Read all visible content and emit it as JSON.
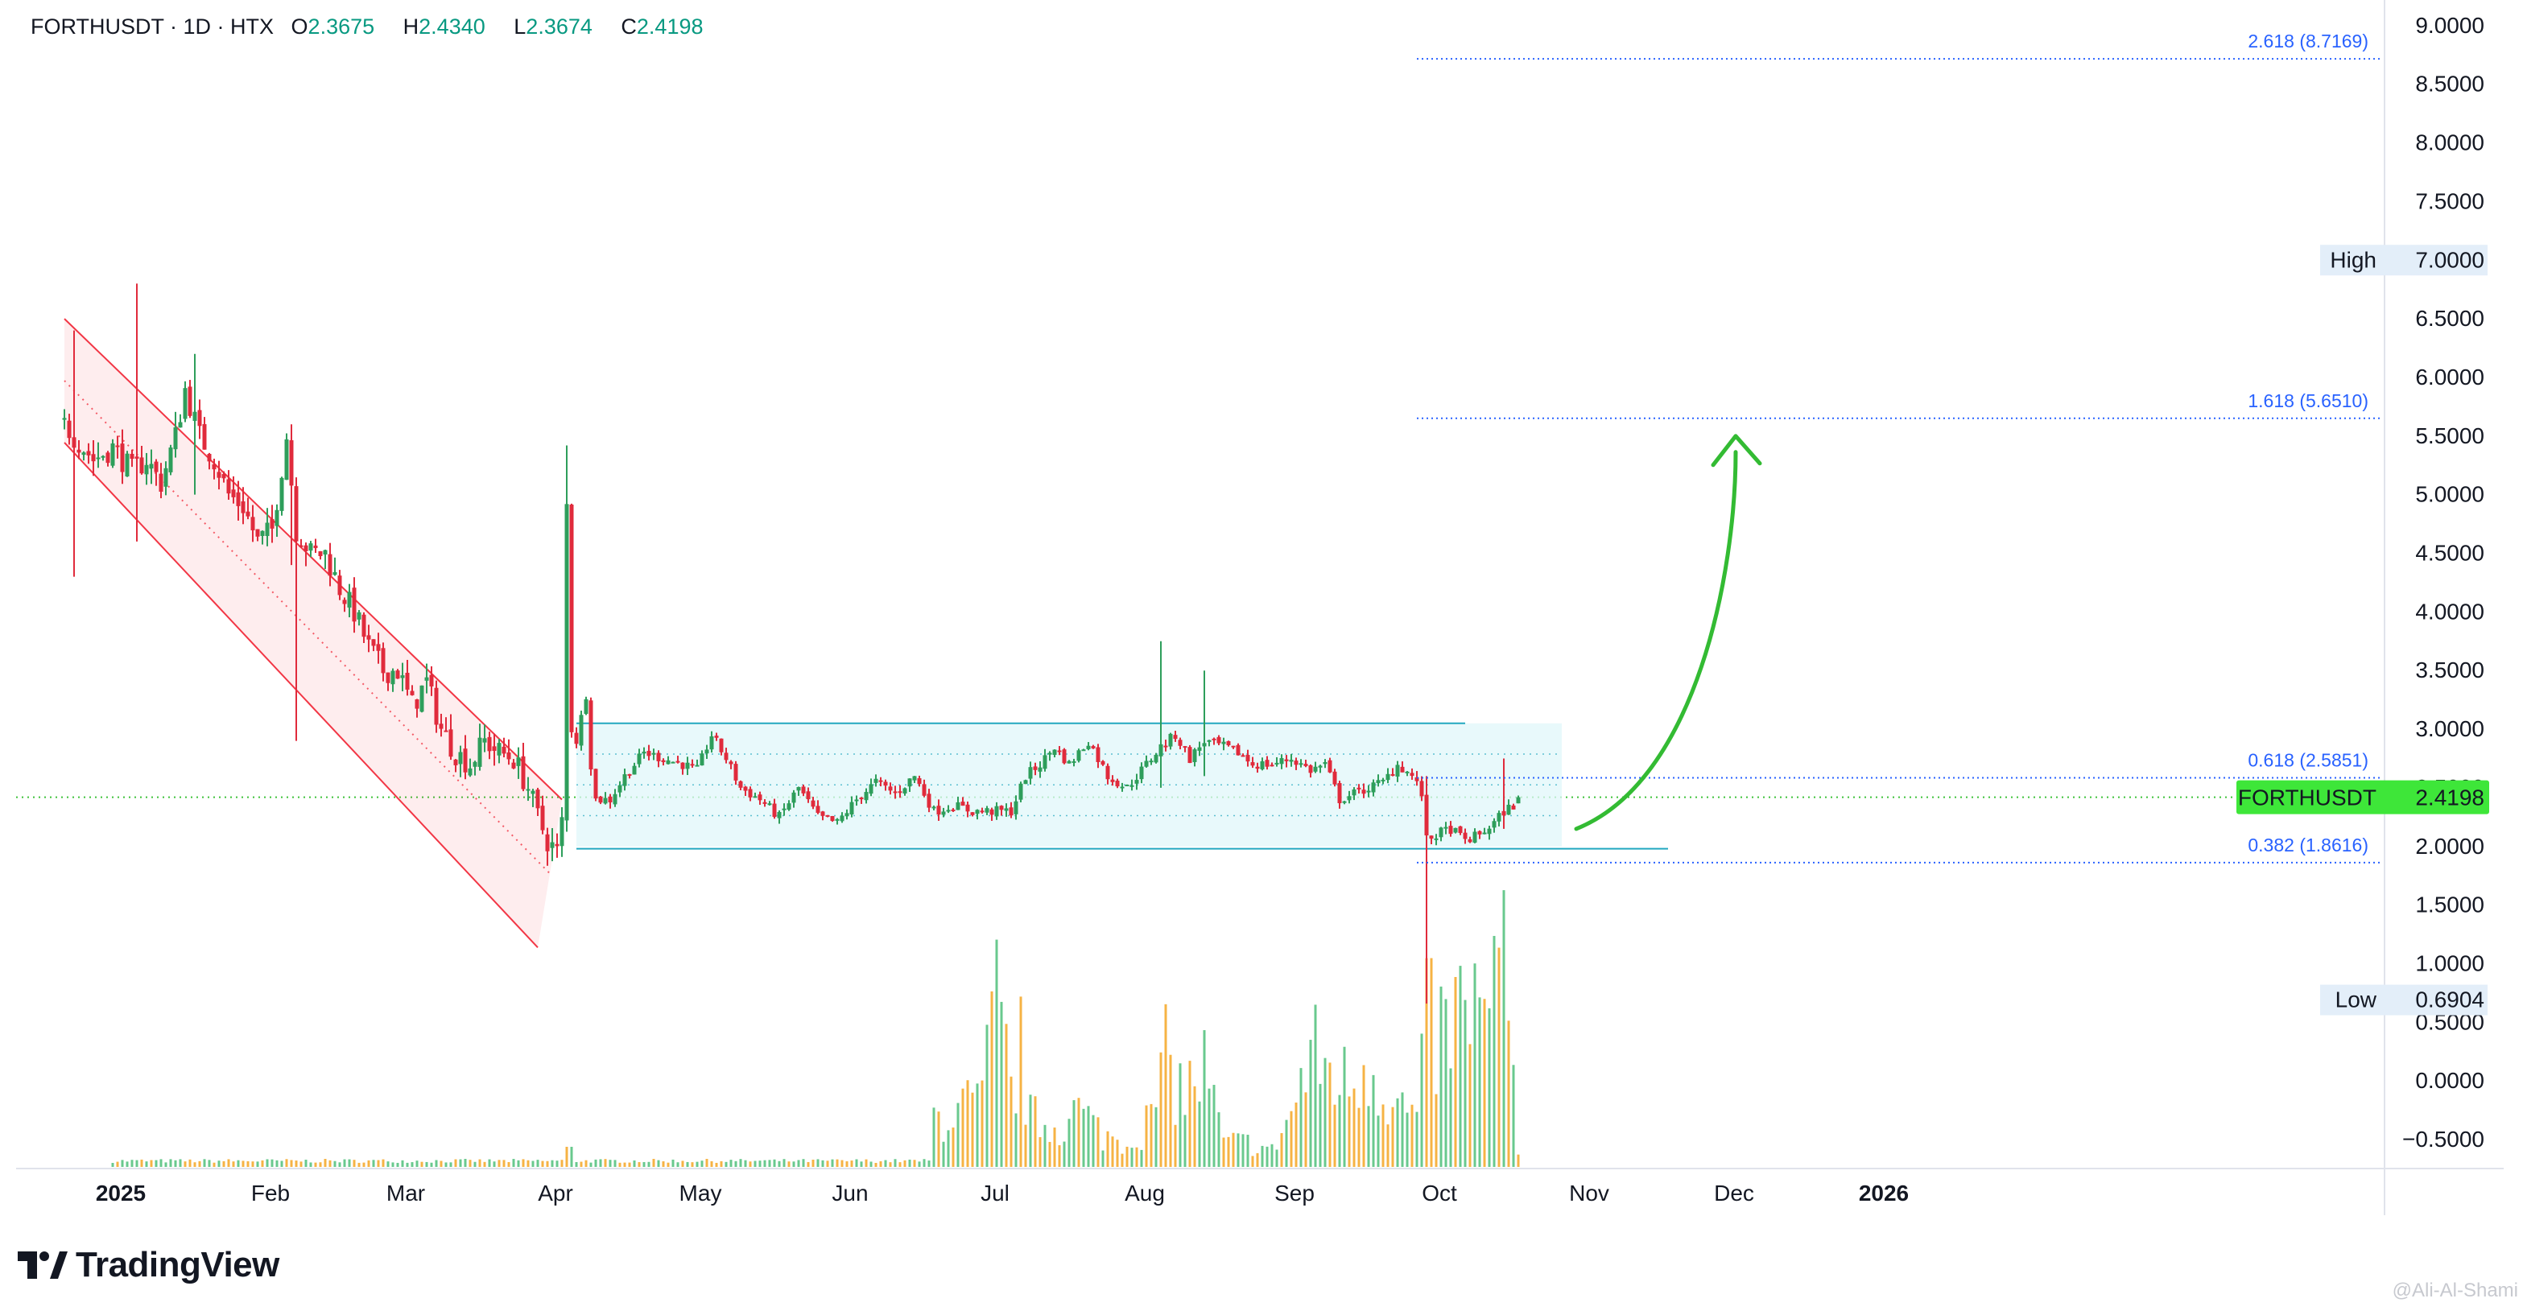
{
  "header": {
    "symbol_line": "FORTHUSDT · 1D · HTX",
    "open_label": "O",
    "open": "2.3675",
    "high_label": "H",
    "high": "2.4340",
    "low_label": "L",
    "low": "2.3674",
    "close_label": "C",
    "close": "2.4198"
  },
  "brand": {
    "name": "TradingView",
    "icon": "tradingview-logo-icon"
  },
  "watermark": "@Ali-Al-Shami",
  "colors": {
    "up": "#2e9e5b",
    "down": "#e02b3c",
    "channel": "#f23645",
    "range_fill": "#e0f7fa",
    "range_line": "#22a8c0",
    "fib": "#2962ff",
    "price_tag": "#3ee639",
    "arrow": "#33bb33",
    "vol_up": "#4fbf7a",
    "vol_down": "#f5a623"
  },
  "chart_data": {
    "type": "candlestick",
    "symbol": "FORTHUSDT",
    "interval": "1D",
    "exchange": "HTX",
    "y_axis": {
      "ylim": [
        -0.75,
        9.2
      ],
      "ticks": [
        "9.0000",
        "8.5000",
        "8.0000",
        "7.5000",
        "7.0000",
        "6.5000",
        "6.0000",
        "5.5000",
        "5.0000",
        "4.5000",
        "4.0000",
        "3.5000",
        "3.0000",
        "2.5000",
        "2.0000",
        "1.5000",
        "1.0000",
        "0.5000",
        "0.0000",
        "−0.5000"
      ],
      "tick_values": [
        9.0,
        8.5,
        8.0,
        7.5,
        7.0,
        6.5,
        6.0,
        5.5,
        5.0,
        4.5,
        4.0,
        3.5,
        3.0,
        2.5,
        2.0,
        1.5,
        1.0,
        0.5,
        0.0,
        -0.5
      ]
    },
    "x_axis": {
      "labels": [
        "2025",
        "Feb",
        "Mar",
        "Apr",
        "May",
        "Jun",
        "Jul",
        "Aug",
        "Sep",
        "Oct",
        "Nov",
        "Dec",
        "2026"
      ],
      "label_bold": [
        true,
        false,
        false,
        false,
        false,
        false,
        false,
        false,
        false,
        false,
        false,
        false,
        true
      ],
      "label_days": [
        0,
        31,
        59,
        90,
        120,
        151,
        181,
        212,
        243,
        273,
        304,
        334,
        365
      ]
    },
    "price_path": [
      [
        -10,
        5.6
      ],
      [
        -4,
        5.3
      ],
      [
        0,
        5.4
      ],
      [
        4,
        5.2
      ],
      [
        7,
        5.3
      ],
      [
        10,
        5.1
      ],
      [
        13,
        5.5
      ],
      [
        15,
        5.9
      ],
      [
        18,
        5.5
      ],
      [
        21,
        5.3
      ],
      [
        24,
        5.0
      ],
      [
        27,
        4.9
      ],
      [
        30,
        4.6
      ],
      [
        33,
        4.7
      ],
      [
        36,
        5.5
      ],
      [
        38,
        4.7
      ],
      [
        41,
        4.5
      ],
      [
        44,
        4.5
      ],
      [
        47,
        4.2
      ],
      [
        50,
        4.0
      ],
      [
        53,
        3.7
      ],
      [
        56,
        3.5
      ],
      [
        59,
        3.5
      ],
      [
        62,
        3.2
      ],
      [
        65,
        3.4
      ],
      [
        68,
        3.0
      ],
      [
        71,
        2.8
      ],
      [
        74,
        2.7
      ],
      [
        77,
        2.9
      ],
      [
        80,
        2.8
      ],
      [
        83,
        2.75
      ],
      [
        86,
        2.5
      ],
      [
        88,
        2.25
      ],
      [
        90,
        2.05
      ],
      [
        92,
        1.95
      ],
      [
        93,
        2.2
      ],
      [
        94,
        4.9
      ],
      [
        95,
        3.0
      ],
      [
        96,
        2.9
      ],
      [
        98,
        3.3
      ],
      [
        99,
        2.7
      ],
      [
        100,
        2.4
      ],
      [
        103,
        2.4
      ],
      [
        106,
        2.6
      ],
      [
        110,
        2.8
      ],
      [
        114,
        2.75
      ],
      [
        118,
        2.7
      ],
      [
        121,
        2.65
      ],
      [
        124,
        2.95
      ],
      [
        127,
        2.75
      ],
      [
        130,
        2.5
      ],
      [
        134,
        2.4
      ],
      [
        138,
        2.25
      ],
      [
        142,
        2.5
      ],
      [
        146,
        2.25
      ],
      [
        150,
        2.2
      ],
      [
        154,
        2.4
      ],
      [
        158,
        2.55
      ],
      [
        162,
        2.45
      ],
      [
        166,
        2.6
      ],
      [
        170,
        2.3
      ],
      [
        174,
        2.35
      ],
      [
        178,
        2.3
      ],
      [
        182,
        2.3
      ],
      [
        186,
        2.3
      ],
      [
        189,
        2.6
      ],
      [
        192,
        2.7
      ],
      [
        195,
        2.85
      ],
      [
        198,
        2.7
      ],
      [
        202,
        2.9
      ],
      [
        206,
        2.6
      ],
      [
        210,
        2.5
      ],
      [
        214,
        2.7
      ],
      [
        217,
        2.85
      ],
      [
        220,
        2.95
      ],
      [
        223,
        2.75
      ],
      [
        226,
        2.9
      ],
      [
        230,
        2.85
      ],
      [
        233,
        2.8
      ],
      [
        236,
        2.7
      ],
      [
        240,
        2.7
      ],
      [
        244,
        2.75
      ],
      [
        248,
        2.65
      ],
      [
        251,
        2.7
      ],
      [
        254,
        2.4
      ],
      [
        257,
        2.45
      ],
      [
        260,
        2.5
      ],
      [
        263,
        2.55
      ],
      [
        266,
        2.7
      ],
      [
        269,
        2.6
      ],
      [
        271,
        2.45
      ],
      [
        272,
        2.05
      ],
      [
        274,
        2.1
      ],
      [
        277,
        2.15
      ],
      [
        280,
        2.05
      ],
      [
        283,
        2.1
      ],
      [
        286,
        2.2
      ],
      [
        288,
        2.3
      ],
      [
        290,
        2.35
      ],
      [
        291,
        2.42
      ]
    ],
    "spikes": [
      {
        "day": -8,
        "high": 6.4,
        "low": 4.3
      },
      {
        "day": 5,
        "high": 6.8,
        "low": 4.6
      },
      {
        "day": 17,
        "high": 6.2,
        "low": 5.0
      },
      {
        "day": 37,
        "high": 5.6,
        "low": 4.4
      },
      {
        "day": 38,
        "high": 4.0,
        "low": 2.9
      },
      {
        "day": 94,
        "high": 5.42,
        "low": 2.7
      },
      {
        "day": 217,
        "high": 3.75,
        "low": 2.5
      },
      {
        "day": 226,
        "high": 3.5,
        "low": 2.6
      },
      {
        "day": 272,
        "high": 2.6,
        "low": 0.66
      },
      {
        "day": 288,
        "high": 2.75,
        "low": 2.15
      }
    ],
    "channel": {
      "upper_start": {
        "day": -10,
        "value": 6.5
      },
      "upper_end": {
        "day": 93,
        "value": 2.4
      },
      "width_value": 0.48,
      "label": ""
    },
    "range_box": {
      "start_day": 96,
      "end_day": 300,
      "top": 3.05,
      "bottom": 2.0
    },
    "support_line": {
      "start_day": 96,
      "end_day": 322,
      "value": 1.98
    },
    "fib_levels": [
      {
        "ratio_label": "2.618 (8.7169)",
        "value": 8.7169
      },
      {
        "ratio_label": "1.618 (5.6510)",
        "value": 5.651
      },
      {
        "ratio_label": "0.618 (2.5851)",
        "value": 2.5851
      },
      {
        "ratio_label": "0.382 (1.8616)",
        "value": 1.8616
      }
    ],
    "fib_start_day": 270,
    "high_marker": {
      "label": "High",
      "value": "7.0000",
      "y": 7.0
    },
    "low_marker": {
      "label": "Low",
      "value": "0.6904",
      "y": 0.6904
    },
    "last_price": {
      "symbol": "FORTHUSDT",
      "value": "2.4198",
      "y": 2.4198
    },
    "arrow": {
      "from_day": 303,
      "from_value": 2.15,
      "to_day": 336,
      "to_value": 5.5
    },
    "volume_profile": [
      [
        170,
        0.3
      ],
      [
        175,
        0.35
      ],
      [
        180,
        0.4
      ],
      [
        183,
        1.0
      ],
      [
        186,
        0.45
      ],
      [
        188,
        0.7
      ],
      [
        190,
        0.3
      ],
      [
        195,
        0.25
      ],
      [
        200,
        0.35
      ],
      [
        205,
        0.2
      ],
      [
        210,
        0.15
      ],
      [
        215,
        0.3
      ],
      [
        218,
        0.65
      ],
      [
        222,
        0.45
      ],
      [
        226,
        0.6
      ],
      [
        230,
        0.15
      ],
      [
        235,
        0.15
      ],
      [
        240,
        0.1
      ],
      [
        245,
        0.4
      ],
      [
        248,
        0.7
      ],
      [
        252,
        0.6
      ],
      [
        256,
        0.5
      ],
      [
        260,
        0.7
      ],
      [
        265,
        0.4
      ],
      [
        270,
        0.3
      ],
      [
        272,
        0.85
      ],
      [
        275,
        0.8
      ],
      [
        278,
        0.9
      ],
      [
        282,
        1.0
      ],
      [
        285,
        0.8
      ],
      [
        288,
        1.5
      ],
      [
        290,
        0.45
      ]
    ]
  }
}
